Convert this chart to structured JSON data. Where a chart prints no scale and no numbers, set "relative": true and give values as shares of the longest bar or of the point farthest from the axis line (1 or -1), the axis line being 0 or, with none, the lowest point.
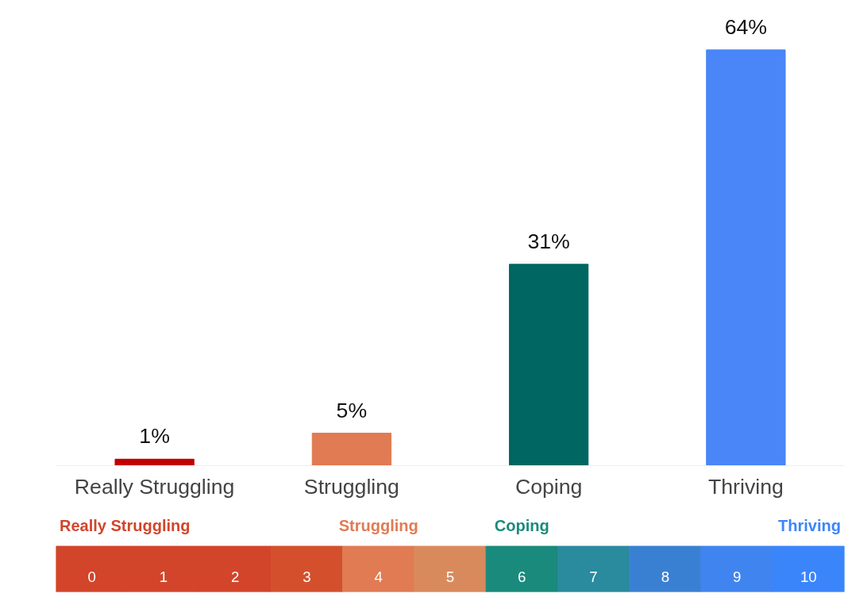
{
  "chart_data": [
    {
      "type": "bar",
      "categories": [
        "Really Struggling",
        "Struggling",
        "Coping",
        "Thriving"
      ],
      "values": [
        1,
        5,
        31,
        64
      ],
      "colors": [
        "#c00000",
        "#e07b53",
        "#006661",
        "#4a86f7"
      ],
      "data_labels": true,
      "value_labels": [
        "1%",
        "5%",
        "31%",
        "64%"
      ],
      "tick_labels": "x"
    },
    {
      "type": "bar",
      "relative": true,
      "categories": [
        "0",
        "1",
        "2",
        "3",
        "4",
        "5",
        "6",
        "7",
        "8",
        "9",
        "10"
      ],
      "values": [
        1,
        1,
        1,
        1,
        1,
        1,
        1,
        1,
        1,
        1,
        1
      ],
      "colors": [
        "#d2452a",
        "#d2452a",
        "#d2452a",
        "#d4502c",
        "#e07b53",
        "#d98a5c",
        "#1a8a7c",
        "#2a8a9e",
        "#3a80d2",
        "#4084f0",
        "#3b85fb"
      ],
      "tick_labels": "x",
      "annotations": [
        "Really Struggling",
        "Struggling",
        "Coping",
        "Thriving"
      ]
    }
  ]
}
